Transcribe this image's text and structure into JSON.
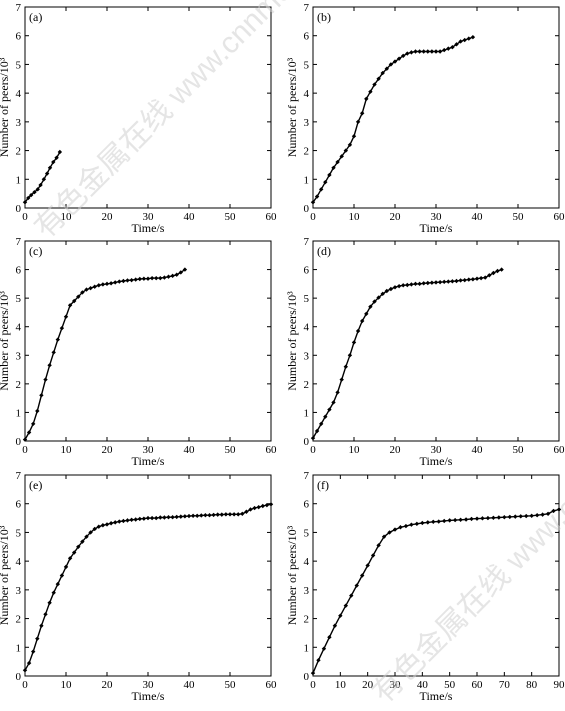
{
  "watermark": [
    "有色金属在线",
    "www.cnnmol.com"
  ],
  "chart_data": [
    {
      "type": "line",
      "panel_label": "(a)",
      "xlabel": "Time/s",
      "ylabel": "Number of peers/10³",
      "xlim": [
        0,
        60
      ],
      "ylim": [
        0,
        7
      ],
      "xticks": [
        0,
        10,
        20,
        30,
        40,
        50,
        60
      ],
      "yticks": [
        0,
        1,
        2,
        3,
        4,
        5,
        6,
        7
      ],
      "x": [
        0,
        0.8,
        1.5,
        2.3,
        3.1,
        3.8,
        4.6,
        5.4,
        6.1,
        6.9,
        7.7,
        8.5
      ],
      "y": [
        0.2,
        0.35,
        0.45,
        0.55,
        0.65,
        0.8,
        1.0,
        1.2,
        1.4,
        1.6,
        1.75,
        1.95
      ]
    },
    {
      "type": "line",
      "panel_label": "(b)",
      "xlabel": "Time/s",
      "ylabel": "Number of peers/10³",
      "xlim": [
        0,
        60
      ],
      "ylim": [
        0,
        7
      ],
      "xticks": [
        0,
        10,
        20,
        30,
        40,
        50,
        60
      ],
      "yticks": [
        0,
        1,
        2,
        3,
        4,
        5,
        6,
        7
      ],
      "x": [
        0,
        1,
        2,
        3,
        4,
        5,
        6,
        7,
        8,
        9,
        10,
        11,
        12,
        13,
        14,
        15,
        16,
        17,
        18,
        19,
        20,
        21,
        22,
        23,
        24,
        25,
        26,
        27,
        28,
        29,
        30,
        31,
        32,
        33,
        34,
        35,
        36,
        37,
        38,
        39
      ],
      "y": [
        0.2,
        0.4,
        0.65,
        0.9,
        1.15,
        1.4,
        1.6,
        1.8,
        2.0,
        2.2,
        2.5,
        3.0,
        3.3,
        3.8,
        4.05,
        4.3,
        4.5,
        4.7,
        4.85,
        5.0,
        5.1,
        5.2,
        5.3,
        5.38,
        5.42,
        5.45,
        5.45,
        5.45,
        5.45,
        5.45,
        5.45,
        5.45,
        5.5,
        5.55,
        5.6,
        5.7,
        5.8,
        5.85,
        5.9,
        5.95
      ]
    },
    {
      "type": "line",
      "panel_label": "(c)",
      "xlabel": "Time/s",
      "ylabel": "Number of peers/10³",
      "xlim": [
        0,
        60
      ],
      "ylim": [
        0,
        7
      ],
      "xticks": [
        0,
        10,
        20,
        30,
        40,
        50,
        60
      ],
      "yticks": [
        0,
        1,
        2,
        3,
        4,
        5,
        6,
        7
      ],
      "x": [
        0,
        1,
        2,
        3,
        4,
        5,
        6,
        7,
        8,
        9,
        10,
        11,
        12,
        13,
        14,
        15,
        16,
        17,
        18,
        19,
        20,
        21,
        22,
        23,
        24,
        25,
        26,
        27,
        28,
        29,
        30,
        31,
        32,
        33,
        34,
        35,
        36,
        37,
        38,
        39
      ],
      "y": [
        0.05,
        0.3,
        0.6,
        1.05,
        1.6,
        2.15,
        2.65,
        3.1,
        3.55,
        3.95,
        4.35,
        4.75,
        4.9,
        5.05,
        5.2,
        5.3,
        5.35,
        5.4,
        5.45,
        5.48,
        5.5,
        5.52,
        5.55,
        5.58,
        5.6,
        5.62,
        5.63,
        5.65,
        5.67,
        5.68,
        5.68,
        5.7,
        5.7,
        5.7,
        5.72,
        5.75,
        5.78,
        5.82,
        5.9,
        6.0
      ]
    },
    {
      "type": "line",
      "panel_label": "(d)",
      "xlabel": "Time/s",
      "ylabel": "Number of peers/10³",
      "xlim": [
        0,
        60
      ],
      "ylim": [
        0,
        7
      ],
      "xticks": [
        0,
        10,
        20,
        30,
        40,
        50,
        60
      ],
      "yticks": [
        0,
        1,
        2,
        3,
        4,
        5,
        6,
        7
      ],
      "x": [
        0,
        1,
        2,
        3,
        4,
        5,
        6,
        7,
        8,
        9,
        10,
        11,
        12,
        13,
        14,
        15,
        16,
        17,
        18,
        19,
        20,
        21,
        22,
        23,
        24,
        25,
        26,
        27,
        28,
        29,
        30,
        31,
        32,
        33,
        34,
        35,
        36,
        37,
        38,
        39,
        40,
        41,
        42,
        43,
        44,
        45,
        46
      ],
      "y": [
        0.1,
        0.35,
        0.6,
        0.85,
        1.1,
        1.35,
        1.7,
        2.15,
        2.6,
        3.0,
        3.45,
        3.85,
        4.2,
        4.45,
        4.7,
        4.88,
        5.02,
        5.15,
        5.25,
        5.32,
        5.38,
        5.42,
        5.45,
        5.46,
        5.48,
        5.5,
        5.5,
        5.52,
        5.53,
        5.54,
        5.55,
        5.56,
        5.57,
        5.58,
        5.59,
        5.6,
        5.62,
        5.63,
        5.65,
        5.66,
        5.68,
        5.7,
        5.72,
        5.8,
        5.88,
        5.95,
        6.0
      ]
    },
    {
      "type": "line",
      "panel_label": "(e)",
      "xlabel": "Time/s",
      "ylabel": "Number of peers/10³",
      "xlim": [
        0,
        60
      ],
      "ylim": [
        0,
        7
      ],
      "xticks": [
        0,
        10,
        20,
        30,
        40,
        50,
        60
      ],
      "yticks": [
        0,
        1,
        2,
        3,
        4,
        5,
        6,
        7
      ],
      "x": [
        0,
        1,
        2,
        3,
        4,
        5,
        6,
        7,
        8,
        9,
        10,
        11,
        12,
        13,
        14,
        15,
        16,
        17,
        18,
        19,
        20,
        21,
        22,
        23,
        24,
        25,
        26,
        27,
        28,
        29,
        30,
        31,
        32,
        33,
        34,
        35,
        36,
        37,
        38,
        39,
        40,
        41,
        42,
        43,
        44,
        45,
        46,
        47,
        48,
        49,
        50,
        51,
        52,
        53,
        54,
        55,
        56,
        57,
        58,
        59,
        60
      ],
      "y": [
        0.2,
        0.45,
        0.85,
        1.3,
        1.75,
        2.15,
        2.55,
        2.9,
        3.2,
        3.5,
        3.8,
        4.1,
        4.3,
        4.5,
        4.68,
        4.85,
        5.0,
        5.12,
        5.2,
        5.25,
        5.28,
        5.32,
        5.35,
        5.38,
        5.4,
        5.42,
        5.44,
        5.45,
        5.47,
        5.48,
        5.5,
        5.5,
        5.5,
        5.52,
        5.52,
        5.53,
        5.53,
        5.54,
        5.55,
        5.56,
        5.57,
        5.58,
        5.58,
        5.59,
        5.6,
        5.6,
        5.61,
        5.62,
        5.62,
        5.63,
        5.63,
        5.63,
        5.63,
        5.65,
        5.72,
        5.8,
        5.85,
        5.88,
        5.92,
        5.95,
        5.98
      ]
    },
    {
      "type": "line",
      "panel_label": "(f)",
      "xlabel": "Time/s",
      "ylabel": "Number of peers/10³",
      "xlim": [
        0,
        90
      ],
      "ylim": [
        0,
        7
      ],
      "xticks": [
        0,
        10,
        20,
        30,
        40,
        50,
        60,
        70,
        80,
        90
      ],
      "yticks": [
        0,
        1,
        2,
        3,
        4,
        5,
        6,
        7
      ],
      "x": [
        0,
        2,
        4,
        6,
        8,
        10,
        12,
        14,
        16,
        18,
        20,
        22,
        24,
        26,
        28,
        30,
        32,
        34,
        36,
        38,
        40,
        42,
        44,
        46,
        48,
        50,
        52,
        54,
        56,
        58,
        60,
        62,
        64,
        66,
        68,
        70,
        72,
        74,
        76,
        78,
        80,
        82,
        84,
        86,
        88,
        90
      ],
      "y": [
        0.1,
        0.55,
        0.95,
        1.35,
        1.75,
        2.1,
        2.45,
        2.8,
        3.15,
        3.5,
        3.85,
        4.2,
        4.55,
        4.85,
        5.0,
        5.1,
        5.18,
        5.22,
        5.27,
        5.3,
        5.33,
        5.35,
        5.37,
        5.38,
        5.4,
        5.42,
        5.43,
        5.44,
        5.45,
        5.47,
        5.48,
        5.49,
        5.5,
        5.51,
        5.52,
        5.53,
        5.54,
        5.55,
        5.56,
        5.57,
        5.58,
        5.6,
        5.62,
        5.65,
        5.75,
        5.8
      ]
    }
  ]
}
